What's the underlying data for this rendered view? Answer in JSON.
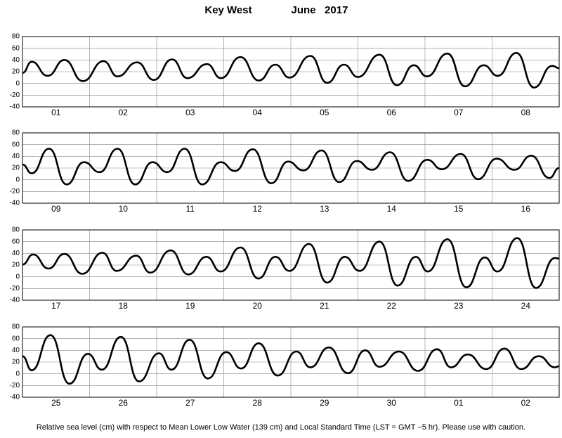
{
  "title": "Key West",
  "period": "June   2017",
  "caption": "Relative sea level (cm) with respect to Mean Lower Low Water (139 cm) and Local Standard Time (LST = GMT −5 hr). Please use with caution.",
  "chart_data": [
    {
      "type": "line",
      "categories": [
        "01",
        "02",
        "03",
        "04",
        "05",
        "06",
        "07",
        "08"
      ],
      "xlim": [
        0,
        192
      ],
      "ylim": [
        -40,
        80
      ],
      "yticks": [
        -40,
        -20,
        0,
        20,
        40,
        60,
        80
      ],
      "grid": true,
      "color": "#000000",
      "x": [
        0,
        3.3,
        9,
        15,
        21.6,
        29,
        34,
        41,
        47,
        53.5,
        59,
        66,
        71,
        78,
        84.5,
        90.5,
        95.5,
        103,
        109,
        115,
        120,
        127.7,
        134,
        140,
        144.7,
        152,
        158.3,
        165,
        170,
        176.7,
        183,
        189.5,
        192
      ],
      "values": [
        18,
        37,
        13,
        40,
        4,
        38,
        12,
        36,
        6,
        41,
        9,
        33,
        9,
        45,
        5,
        32,
        10,
        47,
        1,
        32,
        11,
        49,
        -3,
        31,
        12,
        51,
        -5,
        31,
        13,
        52,
        -7,
        30,
        26
      ]
    },
    {
      "type": "line",
      "categories": [
        "09",
        "10",
        "11",
        "12",
        "13",
        "14",
        "15",
        "16"
      ],
      "xlim": [
        0,
        192
      ],
      "ylim": [
        -40,
        80
      ],
      "yticks": [
        -40,
        -20,
        0,
        20,
        40,
        60,
        80
      ],
      "grid": true,
      "color": "#000000",
      "x": [
        0,
        3.3,
        9.5,
        15.8,
        22,
        27.6,
        34,
        40.3,
        46.5,
        51.8,
        58,
        64.3,
        70.9,
        76,
        82.4,
        89,
        95,
        100.5,
        107,
        113.3,
        119.6,
        125,
        131.5,
        138,
        144.8,
        150,
        156.8,
        163,
        169.6,
        176,
        182,
        188.5,
        192
      ],
      "values": [
        26,
        11,
        53,
        -8,
        30,
        13,
        53,
        -8,
        30,
        13,
        53,
        -8,
        30,
        15,
        52,
        -6,
        31,
        16,
        50,
        -4,
        32,
        17,
        47,
        -2,
        34,
        18,
        44,
        1,
        36,
        17,
        41,
        3,
        20
      ]
    },
    {
      "type": "line",
      "categories": [
        "17",
        "18",
        "19",
        "20",
        "21",
        "22",
        "23",
        "24"
      ],
      "xlim": [
        0,
        192
      ],
      "ylim": [
        -40,
        80
      ],
      "yticks": [
        -40,
        -20,
        0,
        20,
        40,
        60,
        80
      ],
      "grid": true,
      "color": "#000000",
      "x": [
        0,
        3.8,
        9.3,
        15,
        21.4,
        28.6,
        33.7,
        40.7,
        45.7,
        53,
        59.3,
        65.8,
        70.9,
        78,
        84.4,
        90.5,
        95.5,
        102.5,
        109,
        115.3,
        120.6,
        127.7,
        134.2,
        140.7,
        145,
        152,
        158.8,
        165.4,
        169.9,
        177,
        183.7,
        190.5,
        192
      ],
      "values": [
        21,
        38,
        14,
        39,
        5,
        41,
        10,
        36,
        7,
        45,
        4,
        34,
        9,
        50,
        -3,
        34,
        10,
        56,
        -10,
        34,
        10,
        60,
        -15,
        34,
        9,
        64,
        -18,
        33,
        9,
        66,
        -19,
        32,
        31
      ]
    },
    {
      "type": "line",
      "categories": [
        "25",
        "26",
        "27",
        "28",
        "29",
        "30",
        "01",
        "02"
      ],
      "xlim": [
        0,
        192
      ],
      "ylim": [
        -40,
        80
      ],
      "yticks": [
        -40,
        -20,
        0,
        20,
        40,
        60,
        80
      ],
      "grid": true,
      "color": "#000000",
      "x": [
        0,
        3.3,
        10,
        16.8,
        23.4,
        28.4,
        35.2,
        41.7,
        48.8,
        53.3,
        59.8,
        66.3,
        72.9,
        78.2,
        84.5,
        91.3,
        98,
        103,
        109.6,
        116.4,
        122.6,
        127.7,
        134.7,
        141.5,
        148.3,
        153.3,
        159.3,
        165.9,
        172.4,
        178.4,
        184.7,
        190.5,
        192
      ],
      "values": [
        30,
        6,
        66,
        -17,
        34,
        7,
        63,
        -13,
        35,
        7,
        58,
        -8,
        37,
        9,
        52,
        -3,
        38,
        11,
        45,
        1,
        40,
        12,
        38,
        5,
        42,
        11,
        33,
        8,
        43,
        8,
        30,
        11,
        13
      ]
    }
  ]
}
